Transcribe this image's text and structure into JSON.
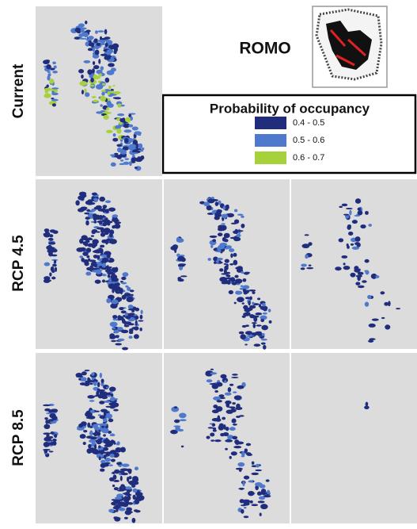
{
  "rows": [
    "Current",
    "RCP 4.5",
    "RCP 8.5"
  ],
  "site": "ROMO",
  "legend": {
    "title": "Probability of occupancy",
    "items": [
      {
        "label": "0.4 - 0.5",
        "color": "#1f2d7c"
      },
      {
        "label": "0.5 - 0.6",
        "color": "#4f79cc"
      },
      {
        "label": "0.6 - 0.7",
        "color": "#a6d13a"
      }
    ]
  }
}
